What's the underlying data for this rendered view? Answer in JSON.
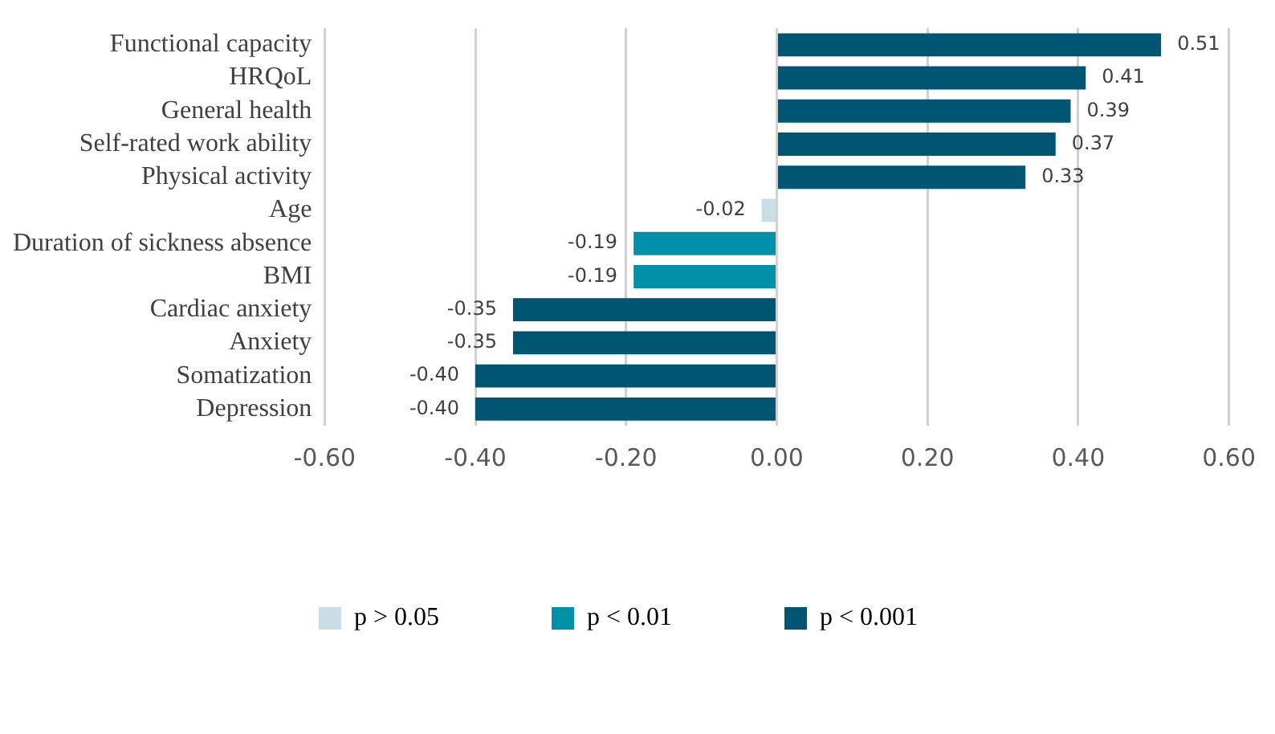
{
  "chart_data": {
    "type": "bar",
    "orientation": "horizontal",
    "stacked": true,
    "categories": [
      "Functional capacity",
      "HRQoL",
      "General health",
      "Self-rated work ability",
      "Physical activity",
      "Age",
      "Duration of sickness absence",
      "BMI",
      "Cardiac anxiety",
      "Anxiety",
      "Somatization",
      "Depression"
    ],
    "series": [
      {
        "name": "p > 0.05",
        "color": "#c8dde4",
        "values": [
          null,
          null,
          null,
          null,
          null,
          -0.02,
          null,
          null,
          null,
          null,
          null,
          null
        ],
        "value_labels": [
          null,
          null,
          null,
          null,
          null,
          "-0.02",
          null,
          null,
          null,
          null,
          null,
          null
        ]
      },
      {
        "name": "p < 0.01",
        "color": "#0090a8",
        "values": [
          null,
          null,
          null,
          null,
          null,
          null,
          -0.19,
          -0.19,
          null,
          null,
          null,
          null
        ],
        "value_labels": [
          null,
          null,
          null,
          null,
          null,
          null,
          "-0.19",
          "-0.19",
          null,
          null,
          null,
          null
        ]
      },
      {
        "name": "p < 0.001",
        "color": "#005572",
        "values": [
          0.51,
          0.41,
          0.39,
          0.37,
          0.33,
          null,
          null,
          null,
          -0.35,
          -0.35,
          -0.4,
          -0.4
        ],
        "value_labels": [
          "0.51",
          "0.41",
          "0.39",
          "0.37",
          "0.33",
          null,
          null,
          null,
          "-0.35",
          "-0.35",
          "-0.40",
          "-0.40"
        ]
      }
    ],
    "xlim": [
      -0.6,
      0.6
    ],
    "xticks": [
      {
        "value": -0.6,
        "label": "-0.60"
      },
      {
        "value": -0.4,
        "label": "-0.40"
      },
      {
        "value": -0.2,
        "label": "-0.20"
      },
      {
        "value": 0,
        "label": "0.00"
      },
      {
        "value": 0.2,
        "label": "0.20"
      },
      {
        "value": 0.4,
        "label": "0.40"
      },
      {
        "value": 0.6,
        "label": "0.60"
      }
    ],
    "grid": "x",
    "legend": "bottom"
  }
}
